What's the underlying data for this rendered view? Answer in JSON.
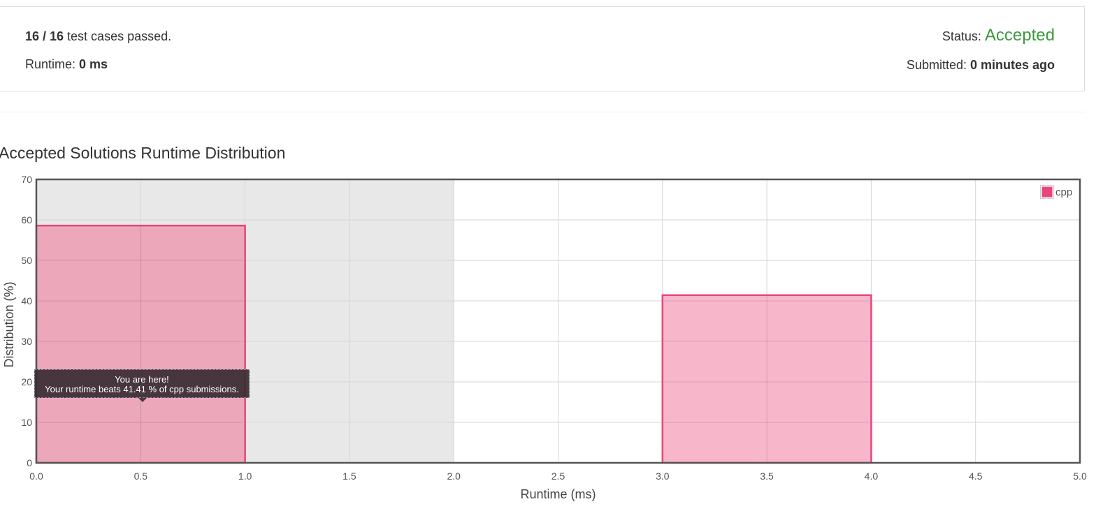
{
  "submission": {
    "passed_count": "16 / 16",
    "passed_suffix": " test cases passed.",
    "runtime_label": "Runtime: ",
    "runtime_value": "0 ms",
    "status_label": "Status: ",
    "status_value": "Accepted",
    "submitted_label": "Submitted: ",
    "submitted_value": "0 minutes ago"
  },
  "chart_title": "Accepted Solutions Runtime Distribution",
  "tooltip": {
    "line1": "You are here!",
    "line2": "Your runtime beats 41.41 % of cpp submissions."
  },
  "chart_data": {
    "type": "bar",
    "title": "Accepted Solutions Runtime Distribution",
    "xlabel": "Runtime (ms)",
    "ylabel": "Distribution (%)",
    "xlim": [
      0,
      5
    ],
    "ylim": [
      0,
      70
    ],
    "x_ticks": [
      0.0,
      0.5,
      1.0,
      1.5,
      2.0,
      2.5,
      3.0,
      3.5,
      4.0,
      4.5,
      5.0
    ],
    "x_tick_labels": [
      "0.0",
      "0.5",
      "1.0",
      "1.5",
      "2.0",
      "2.5",
      "3.0",
      "3.5",
      "4.0",
      "4.5",
      "5.0"
    ],
    "y_ticks": [
      0,
      10,
      20,
      30,
      40,
      50,
      60,
      70
    ],
    "y_tick_labels": [
      "0",
      "10",
      "20",
      "30",
      "40",
      "50",
      "60",
      "70"
    ],
    "grid": true,
    "legend": "top-right",
    "highlight_range": [
      0,
      2
    ],
    "series": [
      {
        "name": "cpp",
        "color": "#e8457a",
        "bins": [
          {
            "x0": 0,
            "x1": 1,
            "value": 58.59,
            "selected": true
          },
          {
            "x0": 3,
            "x1": 4,
            "value": 41.41,
            "selected": false
          }
        ]
      }
    ]
  }
}
